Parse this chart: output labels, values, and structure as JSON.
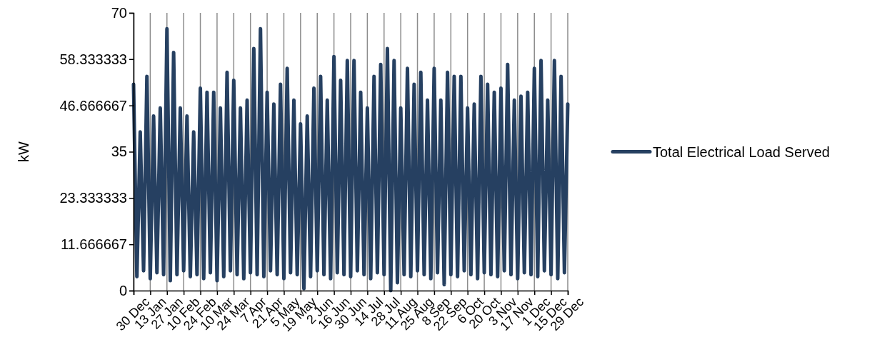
{
  "chart_data": {
    "type": "line",
    "ylabel": "kW",
    "categories": [
      "30 Dec",
      null,
      null,
      null,
      null,
      "13 Jan",
      null,
      null,
      null,
      null,
      "27 Jan",
      null,
      null,
      null,
      null,
      "10 Feb",
      null,
      null,
      null,
      null,
      "24 Feb",
      null,
      null,
      null,
      null,
      "10 Mar",
      null,
      null,
      null,
      null,
      "24 Mar",
      null,
      null,
      null,
      null,
      "7 Apr",
      null,
      null,
      null,
      null,
      "21 Apr",
      null,
      null,
      null,
      null,
      "5 May",
      null,
      null,
      null,
      null,
      "19 May",
      null,
      null,
      null,
      null,
      "2 Jun",
      null,
      null,
      null,
      null,
      "16 Jun",
      null,
      null,
      null,
      null,
      "30 Jun",
      null,
      null,
      null,
      null,
      "14 Jul",
      null,
      null,
      null,
      null,
      "28 Jul",
      null,
      null,
      null,
      null,
      "11 Aug",
      null,
      null,
      null,
      null,
      "25 Aug",
      null,
      null,
      null,
      null,
      "8 Sep",
      null,
      null,
      null,
      null,
      "22 Sep",
      null,
      null,
      null,
      null,
      "6 Oct",
      null,
      null,
      null,
      null,
      "20 Oct",
      null,
      null,
      null,
      null,
      "3 Nov",
      null,
      null,
      null,
      null,
      "17 Nov",
      null,
      null,
      null,
      null,
      "1 Dec",
      null,
      null,
      null,
      null,
      "15 Dec",
      null,
      null,
      null,
      null,
      "29 Dec"
    ],
    "ylim": [
      0,
      70
    ],
    "yticks": [
      0,
      11.666667,
      23.333333,
      35,
      46.666667,
      58.333333,
      70
    ],
    "grid": "x",
    "legend": "right",
    "marker": "none",
    "line_style": "solid",
    "series": [
      {
        "name": "Total Electrical Load Served",
        "color": "#264061",
        "values": [
          52,
          3.5,
          40,
          5,
          54,
          3,
          44,
          4.5,
          46,
          4,
          66,
          2.5,
          60,
          4,
          46,
          5,
          44,
          3.5,
          40,
          4,
          51,
          3,
          50,
          4.5,
          50,
          2.5,
          46,
          3.5,
          55,
          5,
          53,
          4,
          46,
          3,
          48,
          4.5,
          61,
          4,
          66,
          3.5,
          50,
          5,
          47,
          4,
          52,
          3,
          56,
          4.5,
          48,
          4,
          42,
          0.5,
          44,
          3.5,
          51,
          5,
          54,
          4,
          48,
          3,
          59,
          4.5,
          53,
          4,
          58,
          3.5,
          58,
          5,
          50,
          4,
          46,
          3,
          54,
          4.5,
          57,
          4,
          61,
          0,
          58,
          2,
          46,
          4,
          56,
          3.5,
          52,
          5,
          55,
          4,
          48,
          3,
          56,
          4.5,
          48,
          1.5,
          55,
          4,
          54,
          3.5,
          54,
          5,
          46,
          4,
          47,
          3,
          54,
          4.5,
          52,
          4,
          50,
          3.5,
          51,
          5,
          57,
          4,
          48,
          3,
          49,
          4.5,
          50,
          4,
          56,
          3.5,
          58,
          5,
          48,
          4,
          58,
          3,
          54,
          4.5,
          47
        ]
      }
    ]
  }
}
